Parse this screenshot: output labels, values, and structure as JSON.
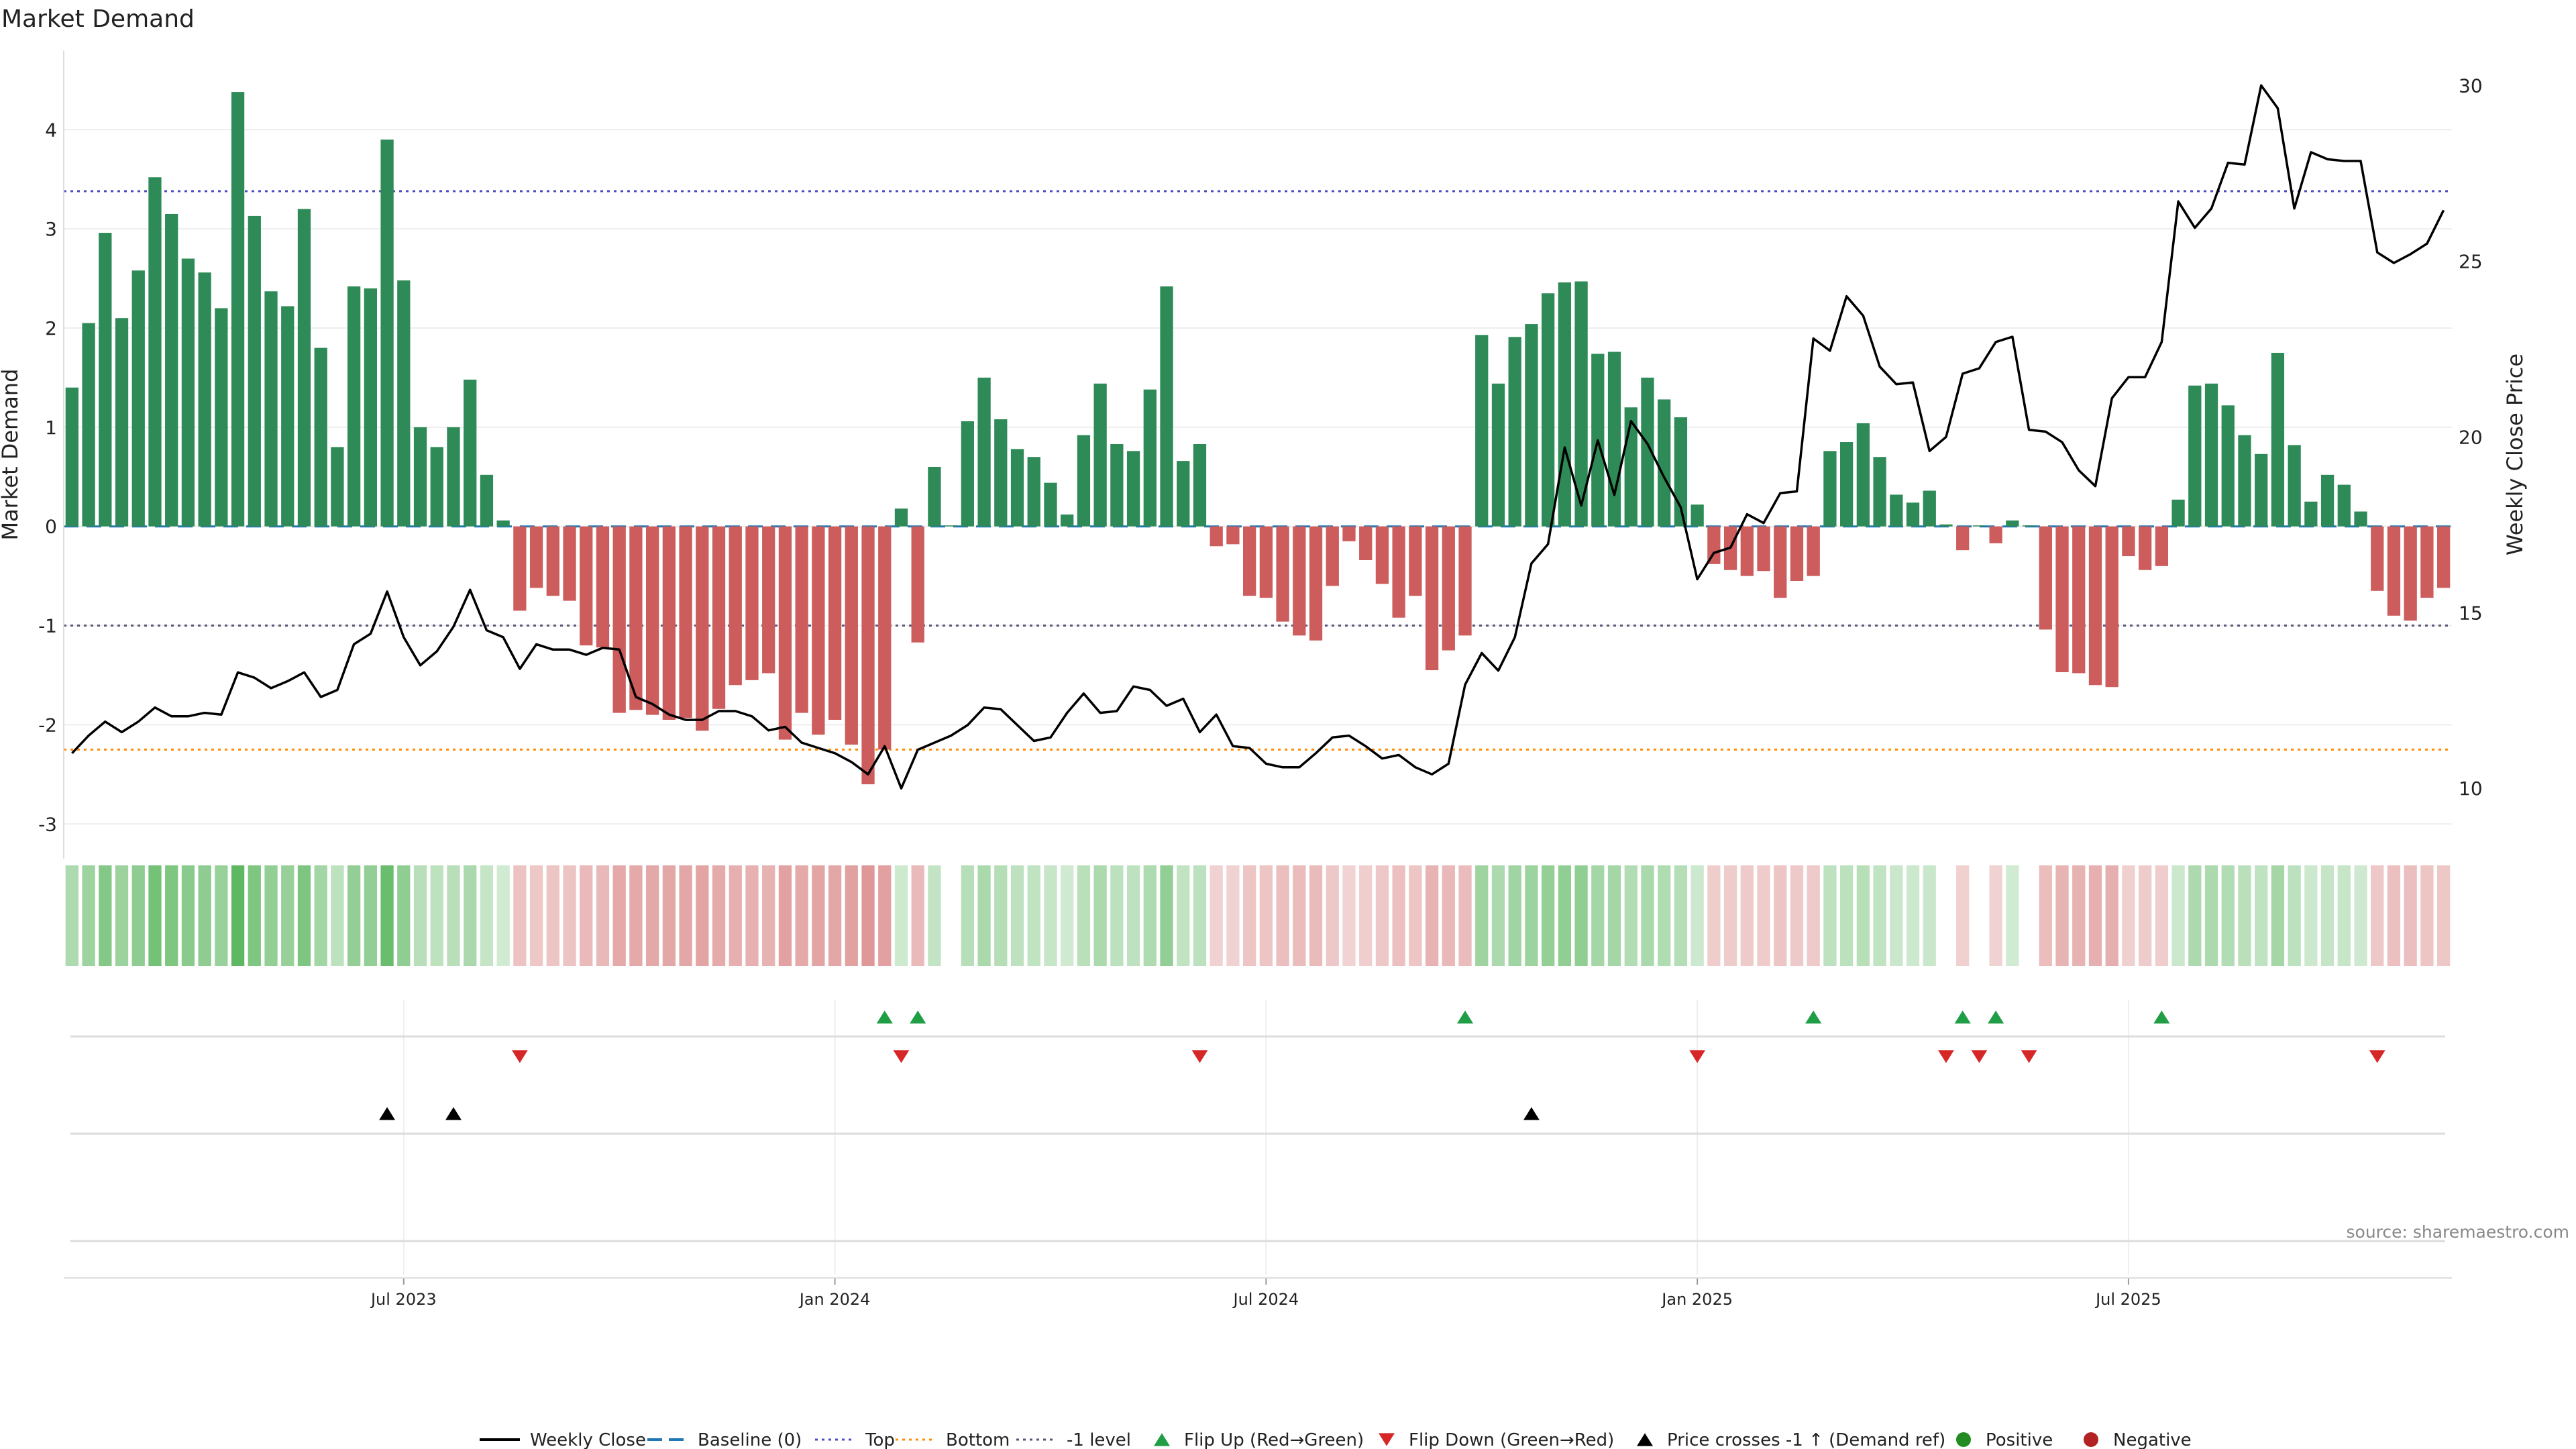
{
  "chart_data": {
    "type": "bar",
    "title": "Market Demand",
    "ylabel": "Market Demand",
    "y2label": "Weekly Close Price",
    "source": "source: sharemaestro.com",
    "ylim": [
      -3.35,
      4.8
    ],
    "y2lim": [
      8.0,
      31.0
    ],
    "yticks": [
      -3,
      -2,
      -1,
      0,
      1,
      2,
      3,
      4
    ],
    "y2ticks": [
      10,
      15,
      20,
      25,
      30
    ],
    "reference_lines": {
      "top": 3.38,
      "bottom": -2.25,
      "minus_one": -1,
      "baseline": 0
    },
    "x_ticks": [
      {
        "label": "Jul 2023",
        "week": 20
      },
      {
        "label": "Jan 2024",
        "week": 46
      },
      {
        "label": "Jul 2024",
        "week": 72
      },
      {
        "label": "Jan 2025",
        "week": 98
      },
      {
        "label": "Jul 2025",
        "week": 124
      }
    ],
    "weeks_total": 144,
    "demand": [
      1.4,
      2.05,
      2.96,
      2.1,
      2.58,
      3.52,
      3.15,
      2.7,
      2.56,
      2.2,
      4.38,
      3.13,
      2.37,
      2.22,
      3.2,
      1.8,
      0.8,
      2.42,
      2.4,
      3.9,
      2.48,
      1.0,
      0.8,
      1.0,
      1.48,
      0.52,
      0.06,
      -0.85,
      -0.62,
      -0.7,
      -0.75,
      -1.2,
      -1.22,
      -1.88,
      -1.85,
      -1.9,
      -1.95,
      -1.93,
      -2.06,
      -1.84,
      -1.6,
      -1.55,
      -1.48,
      -2.15,
      -1.88,
      -2.1,
      -1.95,
      -2.2,
      -2.6,
      -2.25,
      0.18,
      -1.17,
      0.6,
      0.01,
      1.06,
      1.5,
      1.08,
      0.78,
      0.7,
      0.44,
      0.12,
      0.92,
      1.44,
      0.83,
      0.76,
      1.38,
      2.42,
      0.66,
      0.83,
      -0.2,
      -0.18,
      -0.7,
      -0.72,
      -0.96,
      -1.1,
      -1.15,
      -0.6,
      -0.15,
      -0.34,
      -0.58,
      -0.92,
      -0.7,
      -1.45,
      -1.25,
      -1.1,
      1.93,
      1.44,
      1.91,
      2.04,
      2.35,
      2.46,
      2.47,
      1.74,
      1.76,
      1.2,
      1.5,
      1.28,
      1.1,
      0.22,
      -0.38,
      -0.44,
      -0.5,
      -0.45,
      -0.72,
      -0.55,
      -0.5,
      0.76,
      0.85,
      1.04,
      0.7,
      0.32,
      0.24,
      0.36,
      0.02,
      -0.24,
      0.01,
      -0.17,
      0.06,
      0.01,
      -1.04,
      -1.47,
      -1.48,
      -1.6,
      -1.62,
      -0.3,
      -0.44,
      -0.4,
      0.27,
      1.42,
      1.44,
      1.22,
      0.92,
      0.73,
      1.75,
      0.82,
      0.25,
      0.52,
      0.42,
      0.15,
      -0.65,
      -0.9,
      -0.95,
      -0.72,
      -0.62
    ],
    "close": [
      11.0,
      11.5,
      11.9,
      11.6,
      11.9,
      12.3,
      12.05,
      12.05,
      12.15,
      12.1,
      13.3,
      13.15,
      12.85,
      13.05,
      13.3,
      12.6,
      12.8,
      14.1,
      14.4,
      15.6,
      14.3,
      13.5,
      13.9,
      14.6,
      15.65,
      14.5,
      14.3,
      13.4,
      14.1,
      13.95,
      13.95,
      13.8,
      14.0,
      13.95,
      12.6,
      12.4,
      12.1,
      11.95,
      11.95,
      12.2,
      12.2,
      12.05,
      11.65,
      11.75,
      11.3,
      11.15,
      11.0,
      10.75,
      10.4,
      11.2,
      10.0,
      11.1,
      11.3,
      11.5,
      11.8,
      12.3,
      12.25,
      11.8,
      11.35,
      11.45,
      12.15,
      12.7,
      12.15,
      12.2,
      12.9,
      12.8,
      12.35,
      12.55,
      11.6,
      12.1,
      11.2,
      11.15,
      10.7,
      10.6,
      10.6,
      11.0,
      11.45,
      11.5,
      11.2,
      10.85,
      10.95,
      10.6,
      10.4,
      10.7,
      12.95,
      13.85,
      13.35,
      14.3,
      16.4,
      16.95,
      19.7,
      18.05,
      19.9,
      18.35,
      20.45,
      19.8,
      18.85,
      18.0,
      15.95,
      16.7,
      16.85,
      17.8,
      17.55,
      18.4,
      18.45,
      22.8,
      22.45,
      24.0,
      23.45,
      22.0,
      21.5,
      21.55,
      19.6,
      20.0,
      21.8,
      21.95,
      22.7,
      22.85,
      20.2,
      20.15,
      19.85,
      19.05,
      18.6,
      21.1,
      21.7,
      21.7,
      22.7,
      26.7,
      25.95,
      26.5,
      27.8,
      27.75,
      30.0,
      29.35,
      26.5,
      28.1,
      27.9,
      27.85,
      27.85,
      25.25,
      24.95,
      25.2,
      25.5,
      26.45
    ],
    "flip_up_weeks": [
      49,
      51,
      84,
      105,
      114,
      116,
      126
    ],
    "flip_down_weeks": [
      27,
      50,
      68,
      98,
      113,
      115,
      118,
      139
    ],
    "price_cross_weeks": [
      19,
      23,
      88
    ],
    "legend": [
      {
        "key": "close",
        "label": "Weekly Close"
      },
      {
        "key": "baseline",
        "label": "Baseline (0)"
      },
      {
        "key": "top",
        "label": "Top"
      },
      {
        "key": "bottom",
        "label": "Bottom"
      },
      {
        "key": "minus_one",
        "label": "-1 level"
      },
      {
        "key": "flip_up",
        "label": "Flip Up (Red→Green)"
      },
      {
        "key": "flip_down",
        "label": "Flip Down (Green→Red)"
      },
      {
        "key": "price_cross",
        "label": "Price crosses -1 ↑ (Demand ref)"
      },
      {
        "key": "positive",
        "label": "Positive"
      },
      {
        "key": "negative",
        "label": "Negative"
      }
    ],
    "colors": {
      "positive": "#2e8b57",
      "negative": "#cd5c5c",
      "close": "#000000",
      "baseline": "#1f77b4",
      "top": "#4b4bbf",
      "bottom": "#ff8c00",
      "minus_one": "#555577",
      "flip_up": "#1f9e45",
      "flip_down": "#d62728",
      "price_cross": "#000000",
      "legend_positive": "#228b22",
      "legend_negative": "#b22222"
    }
  }
}
